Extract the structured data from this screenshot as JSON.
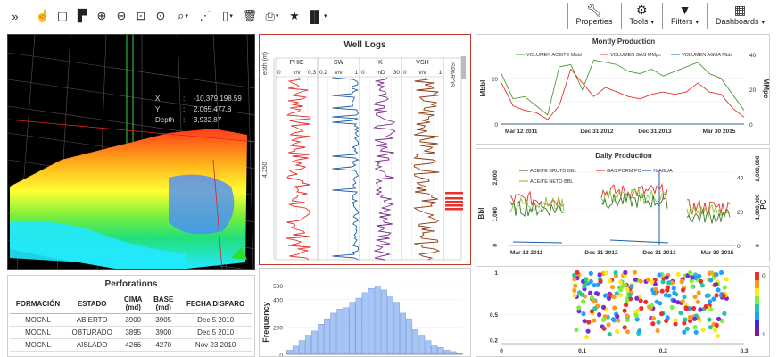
{
  "toolbar": {
    "left_icons": [
      "expand-icon",
      "hand-icon",
      "copy-icon",
      "layers-icon",
      "zoom-in-icon",
      "zoom-out-icon",
      "zoom-box-icon",
      "zoom-extent-icon",
      "query-icon",
      "rss-icon",
      "add-layer-icon",
      "delete-icon",
      "print-icon",
      "favorite-icon",
      "chart-icon"
    ],
    "properties_label": "Properties",
    "tools_label": "Tools",
    "filters_label": "Filters",
    "dashboards_label": "Dashboards"
  },
  "view3d": {
    "x_label": "X",
    "x_value": "-10,379,198.59",
    "y_label": "Y",
    "y_value": "2,065,477.8",
    "depth_label": "Depth",
    "depth_value": "3,932.87"
  },
  "well_logs": {
    "title": "Well Logs",
    "depth_header": "epth (m)",
    "depth_mark": "4,250",
    "tracks": [
      {
        "name": "PHIE",
        "min": "0",
        "unit": "v/v",
        "max": "0.3",
        "color": "#e8302c"
      },
      {
        "name": "SW",
        "min": "0.2",
        "unit": "v/v",
        "max": "1",
        "color": "#1c5fa8"
      },
      {
        "name": "K",
        "min": "0",
        "unit": "mD",
        "max": "30",
        "color": "#7a2a8c"
      },
      {
        "name": "VSH",
        "min": "0",
        "unit": "v/v",
        "max": "1",
        "color": "#8b3a10"
      }
    ],
    "extra_track": "ISPAROS"
  },
  "perforations": {
    "title": "Perforations",
    "headers": [
      "FORMACIÓN",
      "ESTADO",
      "CIMA (md)",
      "BASE (md)",
      "FECHA DISPARO"
    ],
    "rows": [
      [
        "MOCNL",
        "ABIERTO",
        "3900",
        "3905",
        "Dec 5 2010"
      ],
      [
        "MOCNL",
        "OBTURADO",
        "3895",
        "3900",
        "Dec 5 2010"
      ],
      [
        "MOCNL",
        "AISLADO",
        "4266",
        "4270",
        "Nov 23 2010"
      ]
    ]
  },
  "chart_data": [
    {
      "type": "line",
      "title": "Montly Production",
      "ylabel": "Mbbl",
      "y2label": "MMpc",
      "xticks": [
        "Mar 12 2011",
        "Dec 31 2012",
        "Dec 31 2013",
        "Mar 30 2015"
      ],
      "yticks": [
        "0",
        "10",
        "20",
        "30"
      ],
      "y2ticks": [
        "0",
        "20",
        "40"
      ],
      "series": [
        {
          "name": "VOLUMEN ACEITE Mbbl",
          "color": "#4f9a38",
          "values": [
            22,
            11,
            12,
            8,
            4,
            25,
            26,
            15,
            28,
            27,
            26,
            23,
            22,
            24,
            21,
            23,
            25,
            27,
            22,
            20,
            13,
            6
          ]
        },
        {
          "name": "VOLUMEN GAS MMpc",
          "color": "#e8302c",
          "values": [
            18,
            8,
            6,
            5,
            2,
            8,
            24,
            18,
            12,
            16,
            14,
            12,
            11,
            13,
            14,
            13,
            14,
            18,
            14,
            13,
            7,
            3
          ]
        },
        {
          "name": "VOLUMEN AGUA Mbbl",
          "color": "#1c5fa8",
          "values": [
            0,
            0,
            0,
            0,
            0,
            0,
            0,
            0,
            0,
            0,
            0,
            0,
            0,
            0,
            0,
            0,
            0,
            0,
            0,
            0,
            0,
            0
          ]
        }
      ]
    },
    {
      "type": "line",
      "title": "Daily Production",
      "ylabel": "Bbl",
      "y2label": "PC",
      "xticks": [
        "Mar 12 2011",
        "Dec 31 2012",
        "Dec 31 2013",
        "Mar 30 2015"
      ],
      "yticks": [
        "0",
        "1,000",
        "2,000"
      ],
      "y2ticks": [
        "0",
        "20",
        "40"
      ],
      "y3ticks": [
        "0",
        "1,000,000",
        "2,000,000"
      ],
      "series": [
        {
          "name": "ACEITE BRUTO BBL",
          "color": "#3a7a2a"
        },
        {
          "name": "GAS FORM PC",
          "color": "#e8302c"
        },
        {
          "name": "% AGUA",
          "color": "#1c5fa8"
        },
        {
          "name": "ACEITE NETO BBL",
          "color": "#8ac640"
        }
      ]
    },
    {
      "type": "bar",
      "ylabel": "Frequency",
      "yticks": [
        "0",
        "200",
        "400",
        "500"
      ],
      "ylim": [
        0,
        560
      ],
      "values": [
        30,
        60,
        100,
        140,
        170,
        220,
        260,
        300,
        330,
        340,
        380,
        410,
        450,
        480,
        500,
        470,
        420,
        380,
        300,
        260,
        180,
        140,
        100,
        70,
        50,
        30,
        20,
        10
      ],
      "color": "#a6c4f4"
    },
    {
      "type": "scatter",
      "xticks": [
        "0",
        "0.1",
        "0.2",
        "0.3"
      ],
      "yticks": [
        "0.2",
        "0.5",
        "1"
      ],
      "colorbar_ticks": [
        "0",
        "1"
      ]
    }
  ]
}
